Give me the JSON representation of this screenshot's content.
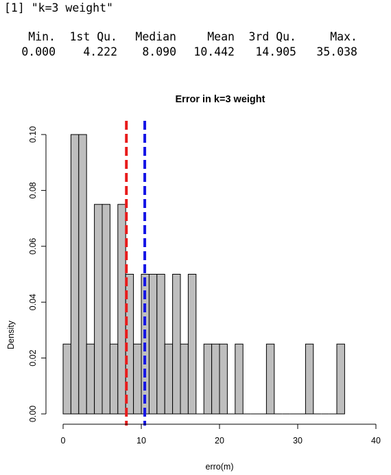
{
  "console": {
    "print_line": "[1] \"k=3 weight\"",
    "summary_headers": [
      "Min.",
      "1st Qu.",
      "Median",
      "Mean",
      "3rd Qu.",
      "Max."
    ],
    "summary_values": [
      "0.000",
      "4.222",
      "8.090",
      "10.442",
      "14.905",
      "35.038"
    ]
  },
  "chart_data": {
    "type": "bar",
    "title": "Error in k=3 weight",
    "xlabel": "erro(m)",
    "ylabel": "Density",
    "xlim": [
      0,
      40
    ],
    "ylim": [
      0,
      0.1
    ],
    "x_ticks": [
      0,
      10,
      20,
      30,
      40
    ],
    "y_ticks": [
      0.0,
      0.02,
      0.04,
      0.06,
      0.08,
      0.1
    ],
    "x_tick_labels": [
      "0",
      "10",
      "20",
      "30",
      "40"
    ],
    "y_tick_labels": [
      "0.00",
      "0.02",
      "0.04",
      "0.06",
      "0.08",
      "0.10"
    ],
    "bin_width": 1,
    "bins": [
      {
        "x0": 0,
        "x1": 1,
        "density": 0.025
      },
      {
        "x0": 1,
        "x1": 2,
        "density": 0.1
      },
      {
        "x0": 2,
        "x1": 3,
        "density": 0.1
      },
      {
        "x0": 3,
        "x1": 4,
        "density": 0.025
      },
      {
        "x0": 4,
        "x1": 5,
        "density": 0.075
      },
      {
        "x0": 5,
        "x1": 6,
        "density": 0.075
      },
      {
        "x0": 6,
        "x1": 7,
        "density": 0.025
      },
      {
        "x0": 7,
        "x1": 8,
        "density": 0.075
      },
      {
        "x0": 8,
        "x1": 9,
        "density": 0.05
      },
      {
        "x0": 9,
        "x1": 10,
        "density": 0.025
      },
      {
        "x0": 10,
        "x1": 11,
        "density": 0.05
      },
      {
        "x0": 11,
        "x1": 12,
        "density": 0.05
      },
      {
        "x0": 12,
        "x1": 13,
        "density": 0.05
      },
      {
        "x0": 13,
        "x1": 14,
        "density": 0.025
      },
      {
        "x0": 14,
        "x1": 15,
        "density": 0.05
      },
      {
        "x0": 15,
        "x1": 16,
        "density": 0.025
      },
      {
        "x0": 16,
        "x1": 17,
        "density": 0.05
      },
      {
        "x0": 17,
        "x1": 18,
        "density": 0.0
      },
      {
        "x0": 18,
        "x1": 19,
        "density": 0.025
      },
      {
        "x0": 19,
        "x1": 20,
        "density": 0.025
      },
      {
        "x0": 20,
        "x1": 21,
        "density": 0.025
      },
      {
        "x0": 21,
        "x1": 22,
        "density": 0.0
      },
      {
        "x0": 22,
        "x1": 23,
        "density": 0.025
      },
      {
        "x0": 23,
        "x1": 24,
        "density": 0.0
      },
      {
        "x0": 24,
        "x1": 25,
        "density": 0.0
      },
      {
        "x0": 25,
        "x1": 26,
        "density": 0.0
      },
      {
        "x0": 26,
        "x1": 27,
        "density": 0.025
      },
      {
        "x0": 27,
        "x1": 28,
        "density": 0.0
      },
      {
        "x0": 28,
        "x1": 29,
        "density": 0.0
      },
      {
        "x0": 29,
        "x1": 30,
        "density": 0.0
      },
      {
        "x0": 30,
        "x1": 31,
        "density": 0.0
      },
      {
        "x0": 31,
        "x1": 32,
        "density": 0.025
      },
      {
        "x0": 32,
        "x1": 33,
        "density": 0.0
      },
      {
        "x0": 33,
        "x1": 34,
        "density": 0.0
      },
      {
        "x0": 34,
        "x1": 35,
        "density": 0.0
      },
      {
        "x0": 35,
        "x1": 36,
        "density": 0.025
      }
    ],
    "vlines": [
      {
        "x": 8.09,
        "color": "#e81b1b"
      },
      {
        "x": 10.442,
        "color": "#1515e6"
      }
    ],
    "bar_color": "#bebebe",
    "bar_stroke": "#000000"
  }
}
